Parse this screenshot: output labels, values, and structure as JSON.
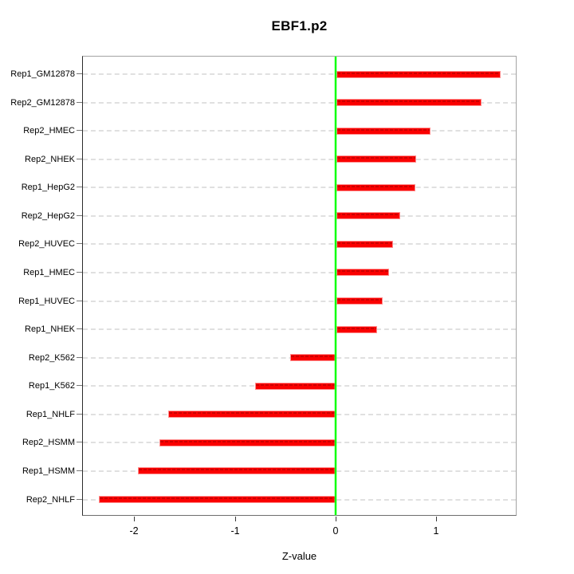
{
  "chart_data": {
    "type": "bar",
    "orientation": "horizontal",
    "title": "EBF1.p2",
    "xlabel": "Z-value",
    "ylabel": "",
    "xlim": [
      -2.51,
      1.79
    ],
    "grid": true,
    "legend": false,
    "categories": [
      "Rep1_GM12878",
      "Rep2_GM12878",
      "Rep2_HMEC",
      "Rep2_NHEK",
      "Rep1_HepG2",
      "Rep2_HepG2",
      "Rep2_HUVEC",
      "Rep1_HMEC",
      "Rep1_HUVEC",
      "Rep1_NHEK",
      "Rep2_K562",
      "Rep1_K562",
      "Rep1_NHLF",
      "Rep2_HSMM",
      "Rep1_HSMM",
      "Rep2_NHLF"
    ],
    "values": [
      1.64,
      1.45,
      0.94,
      0.8,
      0.79,
      0.64,
      0.57,
      0.53,
      0.47,
      0.41,
      -0.45,
      -0.8,
      -1.66,
      -1.75,
      -1.96,
      -2.35
    ],
    "xticks": [
      {
        "label": "-2",
        "value": -2
      },
      {
        "label": "-1",
        "value": -1
      },
      {
        "label": "0",
        "value": 0
      },
      {
        "label": "1",
        "value": 1
      }
    ],
    "colors": {
      "bar": "#fa0000",
      "bar_dash": "#cc0000",
      "bar_edge": "#ff8f8f",
      "zero_line": "#00ff00",
      "gridline": "#e0e0e0",
      "frame": "#a3a3a3",
      "text": "#000000"
    }
  }
}
